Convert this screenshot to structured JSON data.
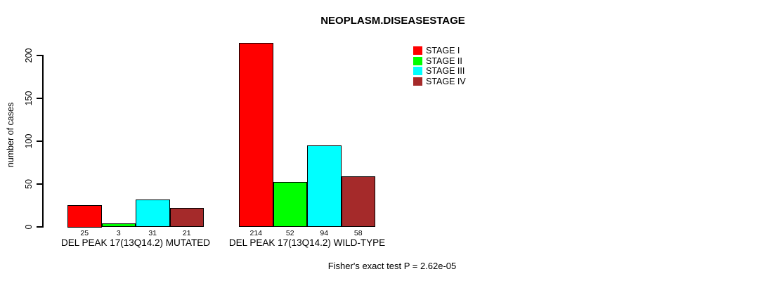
{
  "chart_data": {
    "type": "bar",
    "title": "NEOPLASM.DISEASESTAGE",
    "ylabel": "number of cases",
    "xlabel": "",
    "ylim": [
      0,
      220
    ],
    "yticks": [
      0,
      50,
      100,
      150,
      200
    ],
    "grid": false,
    "legend_position": "top-right",
    "background_color": "#FFFFFF",
    "categories": [
      "DEL PEAK 17(13Q14.2) MUTATED",
      "DEL PEAK 17(13Q14.2) WILD-TYPE"
    ],
    "series": [
      {
        "name": "STAGE I",
        "color": "#FF0000",
        "values": [
          25,
          214
        ]
      },
      {
        "name": "STAGE II",
        "color": "#00FF00",
        "values": [
          3,
          52
        ]
      },
      {
        "name": "STAGE III",
        "color": "#00FFFF",
        "values": [
          31,
          94
        ]
      },
      {
        "name": "STAGE IV",
        "color": "#A52A2A",
        "values": [
          21,
          58
        ]
      }
    ],
    "bar_value_labels": [
      [
        "25",
        "3",
        "31",
        "21"
      ],
      [
        "214",
        "52",
        "94",
        "58"
      ]
    ],
    "annotation": "Fisher's exact test P = 2.62e-05"
  }
}
